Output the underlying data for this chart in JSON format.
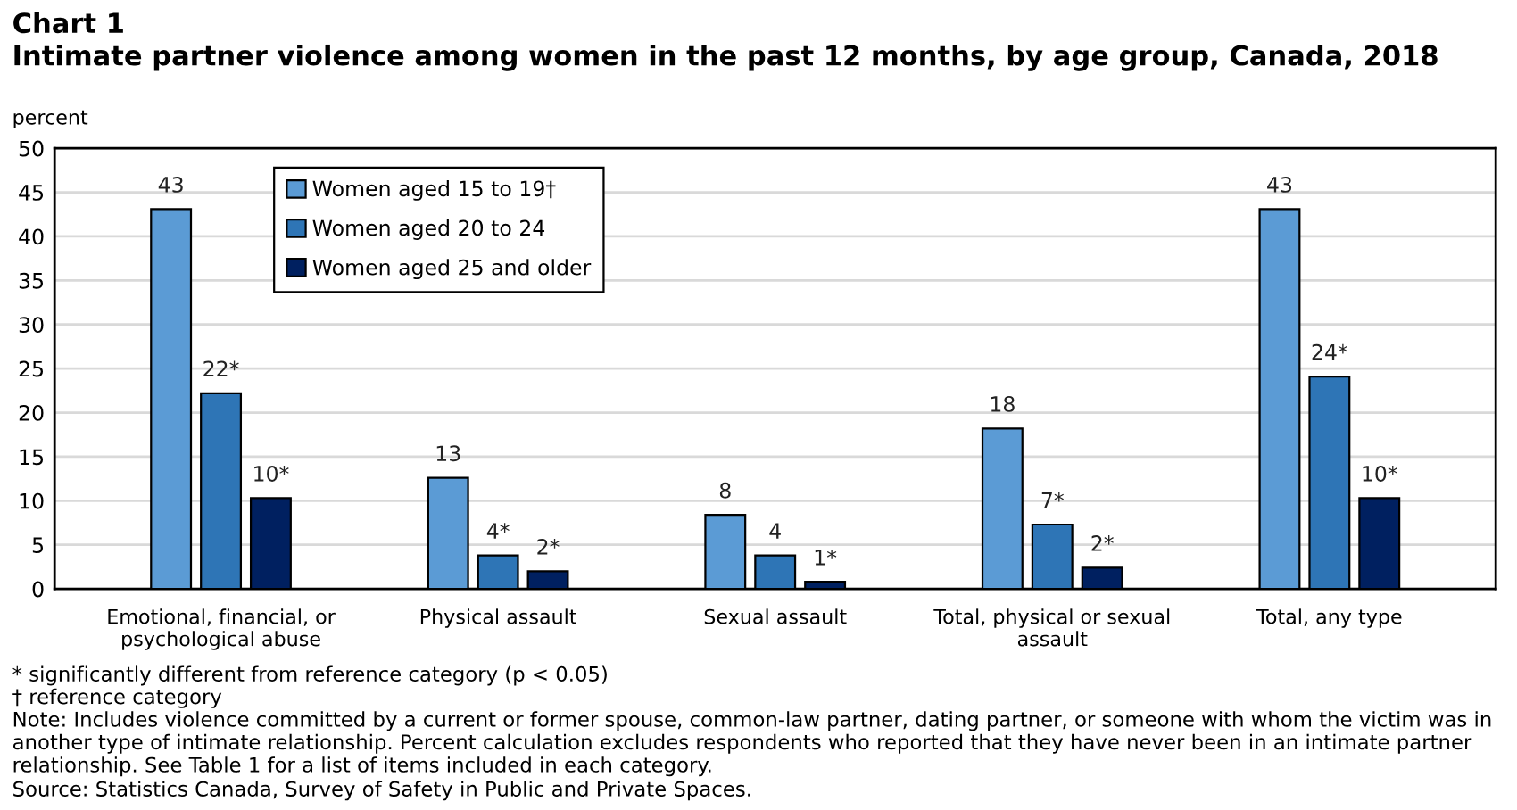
{
  "chart_data": {
    "type": "bar",
    "title": "Chart 1",
    "subtitle": "Intimate partner violence among women in the past 12 months, by age group, Canada, 2018",
    "ylabel": "percent",
    "categories": [
      "Emotional, financial, or\npsychological abuse",
      "Physical assault",
      "Sexual assault",
      "Total, physical or sexual\nassault",
      "Total, any type"
    ],
    "series": [
      {
        "name": "Women aged 15 to 19†",
        "color": "#5b9bd5",
        "values": [
          43.1,
          12.6,
          8.4,
          18.2,
          43.1
        ],
        "value_labels": [
          "43",
          "13",
          "8",
          "18",
          "43"
        ]
      },
      {
        "name": "Women aged 20 to 24",
        "color": "#2e75b6",
        "values": [
          22.2,
          3.8,
          3.8,
          7.3,
          24.1
        ],
        "value_labels": [
          "22*",
          "4*",
          "4",
          "7*",
          "24*"
        ]
      },
      {
        "name": "Women aged 25 and older",
        "color": "#002060",
        "values": [
          10.3,
          2.0,
          0.8,
          2.4,
          10.3
        ],
        "value_labels": [
          "10*",
          "2*",
          "1*",
          "2*",
          "10*"
        ]
      }
    ],
    "ylim": [
      0,
      50
    ],
    "yticks": [
      0,
      5,
      10,
      15,
      20,
      25,
      30,
      35,
      40,
      45,
      50
    ],
    "grid": "y",
    "legend": "top left",
    "annotations": [
      "* significantly different from reference category (p < 0.05)",
      "† reference category",
      "Note: Includes violence committed by a current or former spouse, common-law partner, dating partner, or someone with whom the victim was in another type of intimate relationship. Percent calculation excludes respondents who reported that they have never been in an intimate partner relationship. See Table 1 for a list of items included in each category.",
      "Source: Statistics Canada, Survey of Safety in Public and Private Spaces."
    ]
  }
}
